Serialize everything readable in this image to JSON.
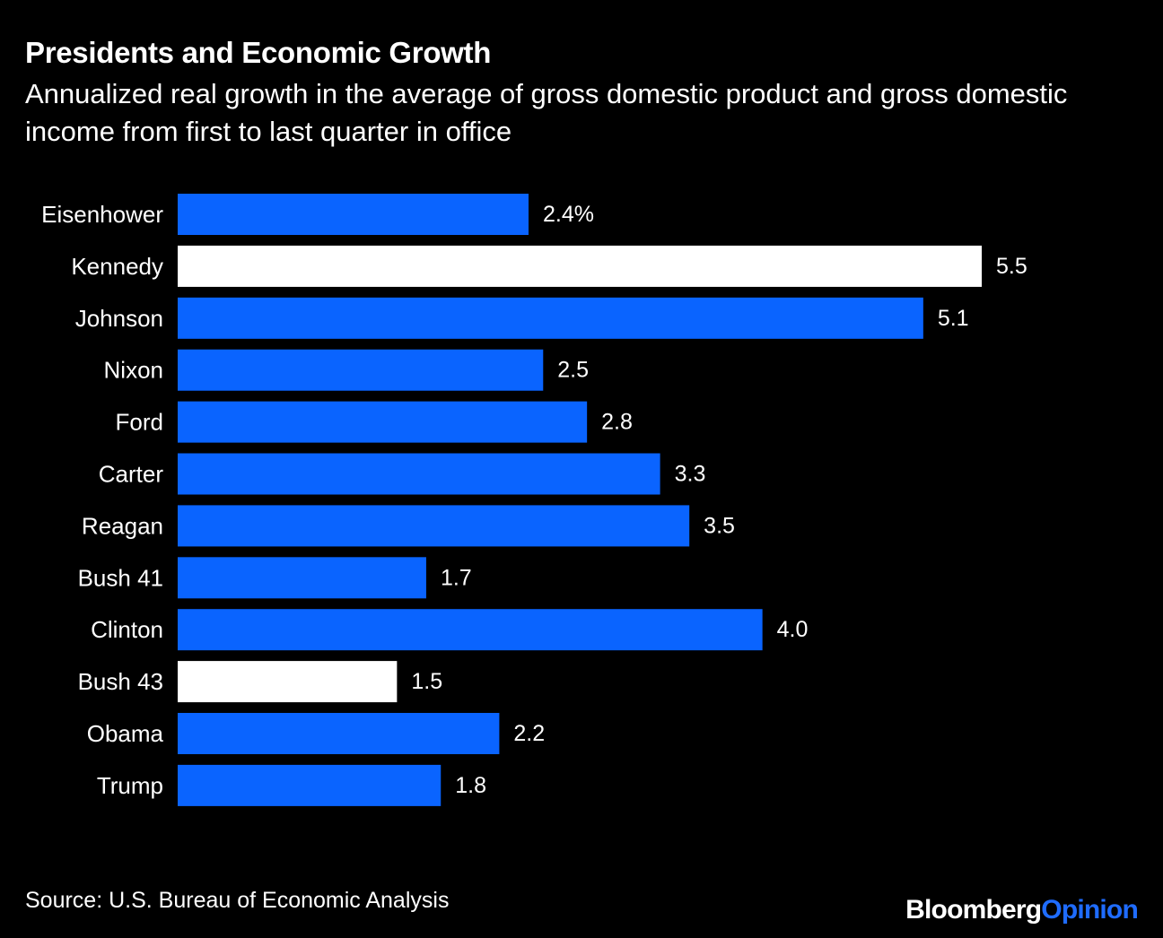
{
  "title": "Presidents and Economic Growth",
  "subtitle": "Annualized real growth in the average of gross domestic product and gross domestic income from first to last quarter in office",
  "source": "Source: U.S. Bureau of Economic Analysis",
  "brand": {
    "part1": "Bloomberg",
    "part2": "Opinion"
  },
  "colors": {
    "default_bar": "#0a64ff",
    "highlight_bar": "#ffffff",
    "background": "#000000",
    "brand_accent": "#1f6cff"
  },
  "chart_data": {
    "type": "bar",
    "orientation": "horizontal",
    "title": "Presidents and Economic Growth",
    "xlabel": "",
    "ylabel": "",
    "xlim": [
      0,
      5.5
    ],
    "unit_suffix_first": "%",
    "categories": [
      "Eisenhower",
      "Kennedy",
      "Johnson",
      "Nixon",
      "Ford",
      "Carter",
      "Reagan",
      "Bush 41",
      "Clinton",
      "Bush 43",
      "Obama",
      "Trump"
    ],
    "values": [
      2.4,
      5.5,
      5.1,
      2.5,
      2.8,
      3.3,
      3.5,
      1.7,
      4.0,
      1.5,
      2.2,
      1.8
    ],
    "value_labels": [
      "2.4%",
      "5.5",
      "5.1",
      "2.5",
      "2.8",
      "3.3",
      "3.5",
      "1.7",
      "4.0",
      "1.5",
      "2.2",
      "1.8"
    ],
    "highlighted": [
      "Kennedy",
      "Bush 43"
    ]
  }
}
